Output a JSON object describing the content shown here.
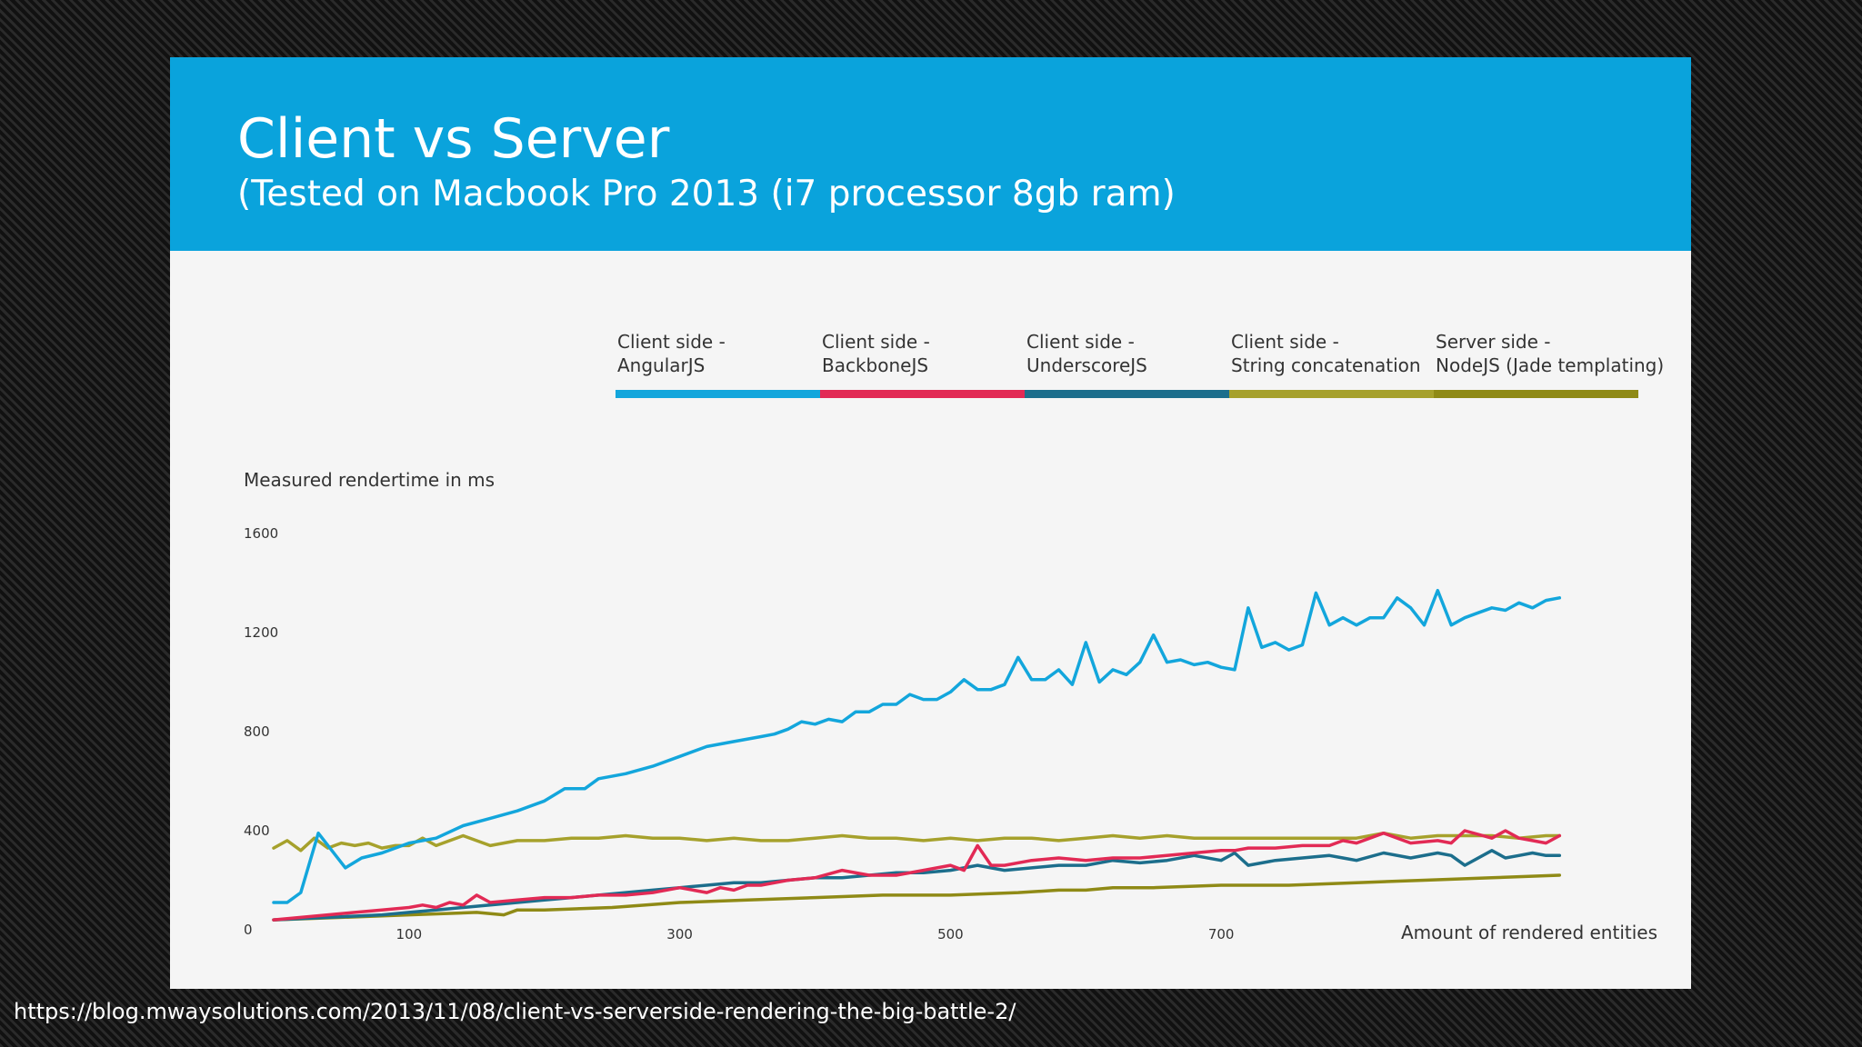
{
  "header": {
    "title": "Client vs Server",
    "subtitle": "(Tested on Macbook Pro 2013 (i7 processor 8gb ram)"
  },
  "source_url": "https://blog.mwaysolutions.com/2013/11/08/client-vs-serverside-rendering-the-big-battle-2/",
  "chart_data": {
    "type": "line",
    "xlabel": "Amount of rendered entities",
    "ylabel": "Measured rendertime in ms",
    "xlim": [
      0,
      980
    ],
    "ylim": [
      0,
      1600
    ],
    "x_ticks": [
      100,
      300,
      500,
      700
    ],
    "y_ticks": [
      0,
      400,
      800,
      1200,
      1600
    ],
    "grid": false,
    "legend_position": "top",
    "series": [
      {
        "name": "Client side - AngularJS",
        "color": "#13a6dc",
        "x": [
          0,
          10,
          20,
          33,
          53,
          65,
          80,
          100,
          120,
          140,
          160,
          180,
          200,
          215,
          230,
          240,
          260,
          280,
          300,
          320,
          340,
          360,
          370,
          380,
          390,
          400,
          410,
          420,
          430,
          440,
          450,
          460,
          470,
          480,
          490,
          500,
          510,
          520,
          530,
          540,
          550,
          560,
          570,
          580,
          590,
          600,
          610,
          620,
          630,
          640,
          650,
          660,
          670,
          680,
          690,
          700,
          710,
          720,
          730,
          740,
          750,
          760,
          770,
          780,
          790,
          800,
          810,
          820,
          830,
          840,
          850,
          860,
          870,
          880,
          890,
          900,
          910,
          920,
          930,
          940,
          950
        ],
        "y": [
          110,
          110,
          150,
          390,
          250,
          290,
          310,
          350,
          370,
          420,
          450,
          480,
          520,
          570,
          570,
          610,
          630,
          660,
          700,
          740,
          760,
          780,
          790,
          810,
          840,
          830,
          850,
          840,
          880,
          880,
          910,
          910,
          950,
          930,
          930,
          960,
          1010,
          970,
          970,
          990,
          1100,
          1010,
          1010,
          1050,
          990,
          1160,
          1000,
          1050,
          1030,
          1080,
          1190,
          1080,
          1090,
          1070,
          1080,
          1060,
          1050,
          1300,
          1140,
          1160,
          1130,
          1150,
          1360,
          1230,
          1260,
          1230,
          1260,
          1260,
          1340,
          1300,
          1230,
          1370,
          1230,
          1260,
          1280,
          1300,
          1290,
          1320,
          1300,
          1330,
          1340
        ]
      },
      {
        "name": "Client side - BackboneJS",
        "color": "#e22a55",
        "x": [
          0,
          20,
          40,
          60,
          80,
          100,
          110,
          120,
          130,
          140,
          150,
          160,
          180,
          200,
          220,
          240,
          260,
          280,
          300,
          320,
          330,
          340,
          350,
          360,
          380,
          400,
          420,
          440,
          460,
          480,
          500,
          510,
          520,
          530,
          540,
          560,
          580,
          600,
          620,
          640,
          660,
          680,
          700,
          710,
          720,
          740,
          760,
          780,
          790,
          800,
          820,
          840,
          860,
          870,
          880,
          900,
          910,
          920,
          930,
          940,
          950
        ],
        "y": [
          40,
          50,
          60,
          70,
          80,
          90,
          100,
          90,
          110,
          100,
          140,
          110,
          120,
          130,
          130,
          140,
          140,
          150,
          170,
          150,
          170,
          160,
          180,
          180,
          200,
          210,
          240,
          220,
          220,
          240,
          260,
          240,
          340,
          260,
          260,
          280,
          290,
          280,
          290,
          290,
          300,
          310,
          320,
          320,
          330,
          330,
          340,
          340,
          360,
          350,
          390,
          350,
          360,
          350,
          400,
          370,
          400,
          370,
          360,
          350,
          380
        ]
      },
      {
        "name": "Client side - UnderscoreJS",
        "color": "#1c6e8c",
        "x": [
          0,
          20,
          40,
          60,
          80,
          100,
          120,
          140,
          160,
          180,
          200,
          220,
          240,
          260,
          280,
          300,
          320,
          340,
          360,
          380,
          400,
          420,
          440,
          460,
          480,
          500,
          520,
          540,
          560,
          580,
          600,
          620,
          640,
          660,
          680,
          700,
          710,
          720,
          740,
          760,
          780,
          790,
          800,
          820,
          840,
          860,
          870,
          880,
          900,
          910,
          920,
          930,
          940,
          950
        ],
        "y": [
          40,
          45,
          50,
          55,
          60,
          70,
          80,
          90,
          100,
          110,
          120,
          130,
          140,
          150,
          160,
          170,
          180,
          190,
          190,
          200,
          210,
          210,
          220,
          230,
          230,
          240,
          260,
          240,
          250,
          260,
          260,
          280,
          270,
          280,
          300,
          280,
          310,
          260,
          280,
          290,
          300,
          290,
          280,
          310,
          290,
          310,
          300,
          260,
          320,
          290,
          300,
          310,
          300,
          300
        ]
      },
      {
        "name": "Client side - String concatenation",
        "color": "#a6a12c",
        "x": [
          0,
          10,
          20,
          30,
          40,
          50,
          60,
          70,
          80,
          90,
          100,
          110,
          120,
          140,
          160,
          180,
          200,
          220,
          240,
          260,
          280,
          300,
          320,
          340,
          360,
          380,
          400,
          420,
          440,
          460,
          480,
          500,
          520,
          540,
          560,
          580,
          600,
          620,
          640,
          660,
          680,
          700,
          720,
          740,
          760,
          780,
          800,
          820,
          840,
          860,
          880,
          900,
          920,
          940,
          950
        ],
        "y": [
          330,
          360,
          320,
          370,
          330,
          350,
          340,
          350,
          330,
          340,
          340,
          370,
          340,
          380,
          340,
          360,
          360,
          370,
          370,
          380,
          370,
          370,
          360,
          370,
          360,
          360,
          370,
          380,
          370,
          370,
          360,
          370,
          360,
          370,
          370,
          360,
          370,
          380,
          370,
          380,
          370,
          370,
          370,
          370,
          370,
          370,
          370,
          390,
          370,
          380,
          380,
          380,
          370,
          380,
          380
        ]
      },
      {
        "name": "Server side - NodeJS (Jade templating)",
        "color": "#8f8a16",
        "x": [
          0,
          50,
          100,
          150,
          170,
          180,
          200,
          250,
          300,
          350,
          400,
          450,
          500,
          550,
          580,
          600,
          620,
          650,
          700,
          750,
          800,
          850,
          900,
          950
        ],
        "y": [
          40,
          50,
          60,
          70,
          60,
          80,
          80,
          90,
          110,
          120,
          130,
          140,
          140,
          150,
          160,
          160,
          170,
          170,
          180,
          180,
          190,
          200,
          210,
          220
        ]
      }
    ]
  }
}
